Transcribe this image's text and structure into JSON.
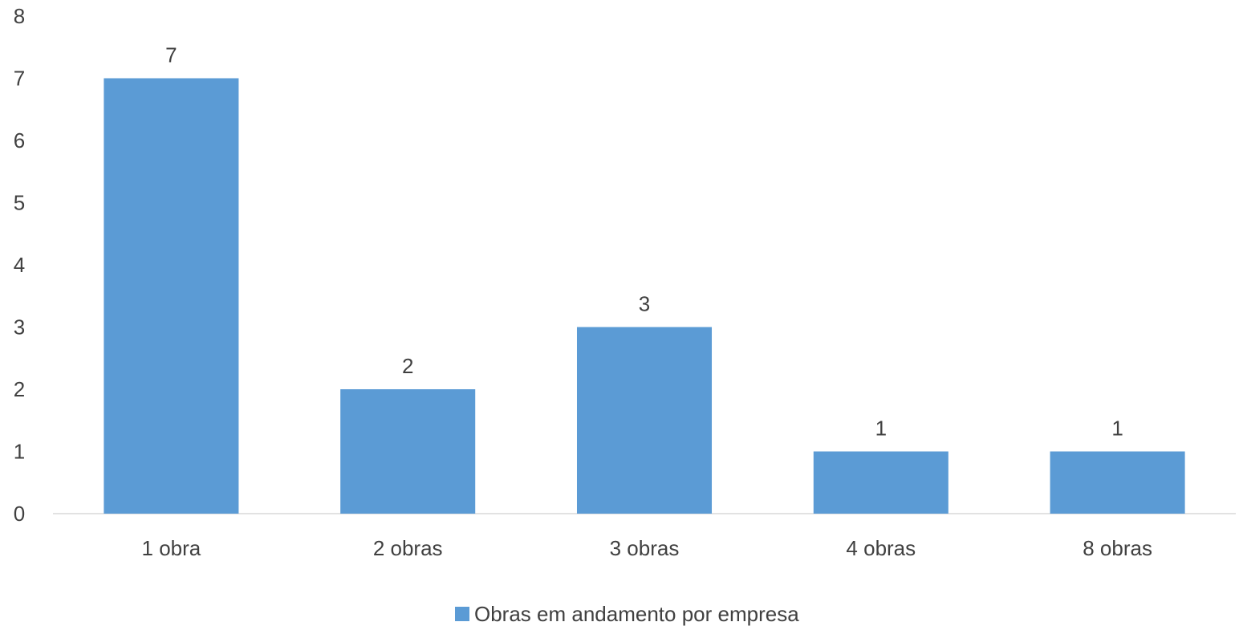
{
  "chart_data": {
    "type": "bar",
    "title": "",
    "xlabel": "",
    "ylabel": "",
    "categories": [
      "1 obra",
      "2 obras",
      "3 obras",
      "4 obras",
      "8 obras"
    ],
    "series": [
      {
        "name": "Obras em andamento por empresa",
        "values": [
          7,
          2,
          3,
          1,
          1
        ],
        "color": "#5b9bd5"
      }
    ],
    "ylim": [
      0,
      8
    ],
    "yticks": [
      "0",
      "1",
      "2",
      "3",
      "4",
      "5",
      "6",
      "7",
      "8"
    ],
    "data_labels": [
      "7",
      "2",
      "3",
      "1",
      "1"
    ],
    "grid": false,
    "legend_position": "bottom"
  }
}
